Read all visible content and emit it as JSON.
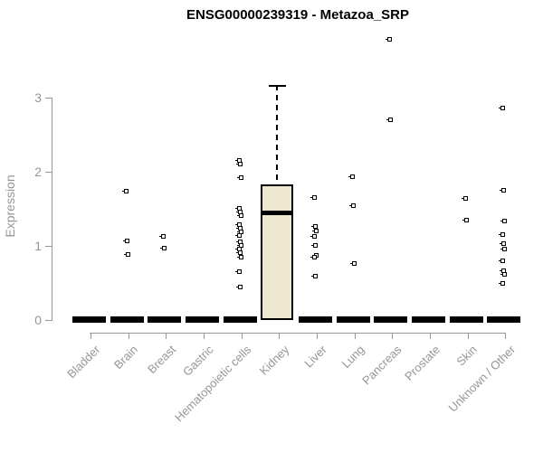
{
  "title": "ENSG00000239319 - Metazoa_SRP",
  "colors": {
    "background": "#FFFFFF",
    "box_fill": "#EDE8CF",
    "box_border": "#000000",
    "median": "#000000",
    "point_outline": "#000000",
    "axis": "#969696",
    "tick_labels": "#969696",
    "title_text": "#000000"
  },
  "chart_data": {
    "type": "boxplot",
    "title": "ENSG00000239319 - Metazoa_SRP",
    "xlabel": "",
    "ylabel": "Expression",
    "yticks": [
      0,
      1,
      2,
      3
    ],
    "ylim": [
      0,
      3.9
    ],
    "grid": false,
    "legend": false,
    "categories": [
      "Bladder",
      "Brain",
      "Breast",
      "Gastric",
      "Hematopoietic cells",
      "Kidney",
      "Liver",
      "Lung",
      "Pancreas",
      "Prostate",
      "Skin",
      "Unknown / Other"
    ],
    "boxes": [
      {
        "category": "Bladder",
        "q1": 0,
        "median": 0,
        "q3": 0,
        "whisker_low": 0,
        "whisker_high": 0
      },
      {
        "category": "Brain",
        "q1": 0,
        "median": 0,
        "q3": 0,
        "whisker_low": 0,
        "whisker_high": 0
      },
      {
        "category": "Breast",
        "q1": 0,
        "median": 0,
        "q3": 0,
        "whisker_low": 0,
        "whisker_high": 0
      },
      {
        "category": "Gastric",
        "q1": 0,
        "median": 0,
        "q3": 0,
        "whisker_low": 0,
        "whisker_high": 0
      },
      {
        "category": "Hematopoietic cells",
        "q1": 0,
        "median": 0,
        "q3": 0,
        "whisker_low": 0,
        "whisker_high": 0
      },
      {
        "category": "Kidney",
        "q1": 0,
        "median": 1.45,
        "q3": 1.83,
        "whisker_low": 0,
        "whisker_high": 3.17
      },
      {
        "category": "Liver",
        "q1": 0,
        "median": 0,
        "q3": 0,
        "whisker_low": 0,
        "whisker_high": 0
      },
      {
        "category": "Lung",
        "q1": 0,
        "median": 0,
        "q3": 0,
        "whisker_low": 0,
        "whisker_high": 0
      },
      {
        "category": "Pancreas",
        "q1": 0,
        "median": 0,
        "q3": 0,
        "whisker_low": 0,
        "whisker_high": 0
      },
      {
        "category": "Prostate",
        "q1": 0,
        "median": 0,
        "q3": 0,
        "whisker_low": 0,
        "whisker_high": 0
      },
      {
        "category": "Skin",
        "q1": 0,
        "median": 0,
        "q3": 0,
        "whisker_low": 0,
        "whisker_high": 0
      },
      {
        "category": "Unknown / Other",
        "q1": 0,
        "median": 0,
        "q3": 0,
        "whisker_low": 0,
        "whisker_high": 0
      }
    ],
    "points": [
      {
        "category": "Bladder",
        "values": []
      },
      {
        "category": "Brain",
        "values": [
          1.74,
          1.07,
          0.89
        ]
      },
      {
        "category": "Breast",
        "values": [
          1.14,
          0.97
        ]
      },
      {
        "category": "Gastric",
        "values": []
      },
      {
        "category": "Hematopoietic cells",
        "values": [
          2.16,
          2.11,
          1.93,
          1.51,
          1.46,
          1.41,
          1.29,
          1.24,
          1.2,
          1.15,
          1.06,
          1.01,
          0.96,
          0.91,
          0.85,
          0.66,
          0.45
        ]
      },
      {
        "category": "Kidney",
        "values": []
      },
      {
        "category": "Liver",
        "values": [
          1.66,
          1.27,
          1.21,
          1.13,
          1.01,
          0.88,
          0.85,
          0.6
        ]
      },
      {
        "category": "Lung",
        "values": [
          1.94,
          1.55,
          0.77
        ]
      },
      {
        "category": "Pancreas",
        "values": [
          3.79,
          2.71
        ]
      },
      {
        "category": "Prostate",
        "values": []
      },
      {
        "category": "Skin",
        "values": [
          1.65,
          1.35
        ]
      },
      {
        "category": "Unknown / Other",
        "values": [
          2.87,
          1.76,
          1.34,
          1.16,
          1.04,
          0.96,
          0.8,
          0.67,
          0.62,
          0.5
        ]
      }
    ]
  }
}
